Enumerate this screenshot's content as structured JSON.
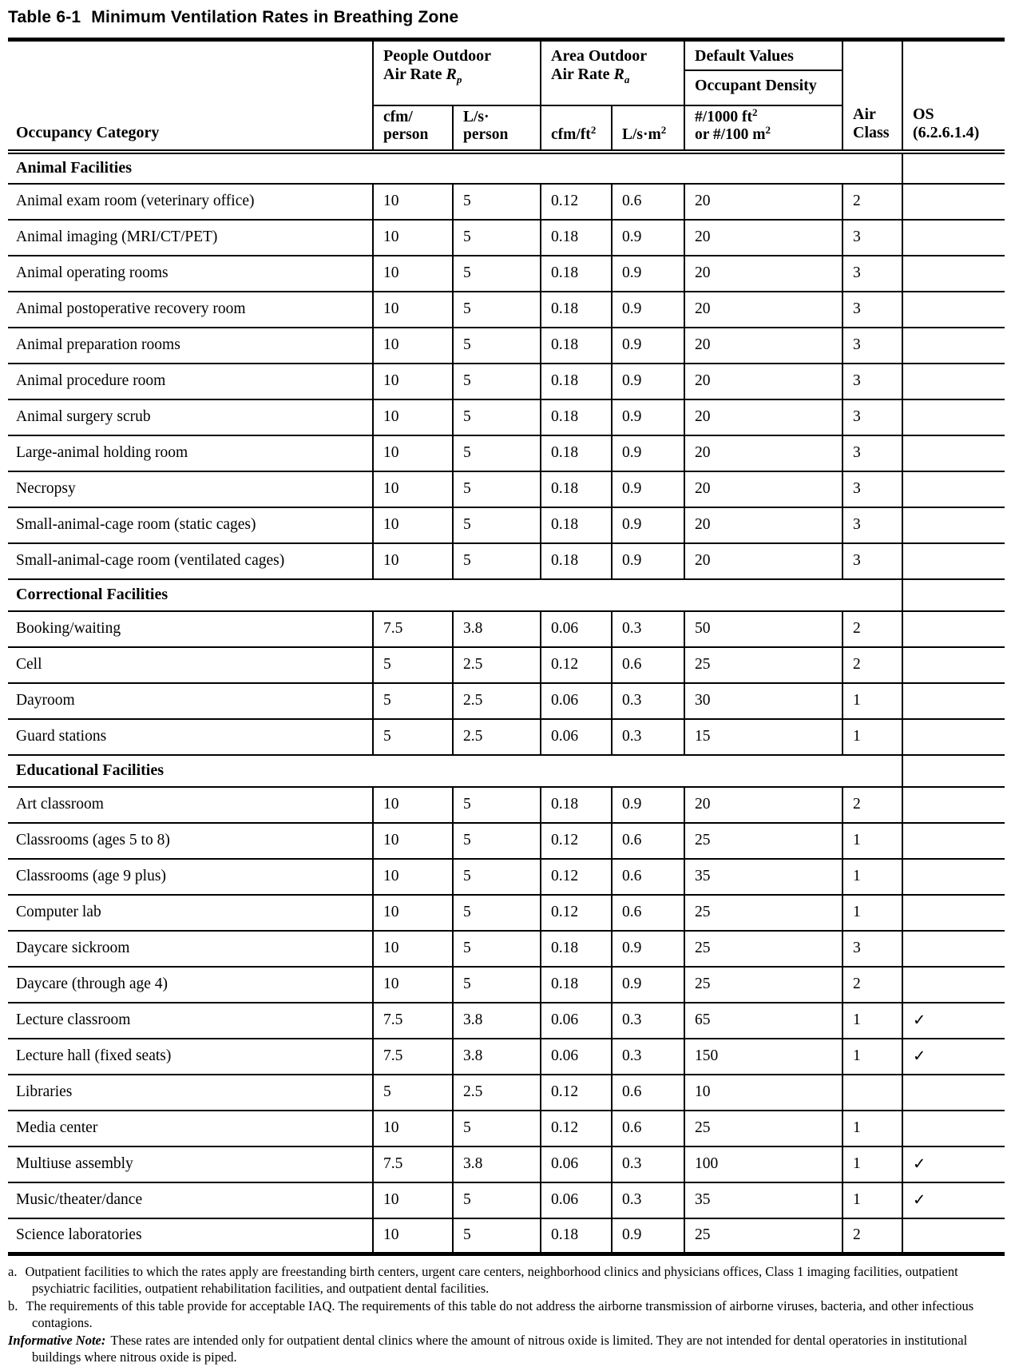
{
  "title": {
    "prefix": "Table 6-1",
    "text": "Minimum Ventilation Rates in Breathing Zone"
  },
  "header": {
    "occupancy_category": "Occupancy Category",
    "people_group": {
      "line1": "People Outdoor",
      "line2": "Air Rate ",
      "symbol": "R",
      "subscript": "p"
    },
    "area_group": {
      "line1": "Area Outdoor",
      "line2": "Air Rate ",
      "symbol": "R",
      "subscript": "a"
    },
    "default_values": "Default Values",
    "occupant_density": "Occupant Density",
    "air_class": {
      "line1": "Air",
      "line2": "Class"
    },
    "os": {
      "line1": "OS",
      "line2": "(6.2.6.1.4)"
    },
    "units": {
      "cfm_person": {
        "line1": "cfm/",
        "line2": "person"
      },
      "ls_person": {
        "line1": "L/s·",
        "line2": "person"
      },
      "cfm_ft2": {
        "base": "cfm/ft",
        "sup": "2"
      },
      "ls_m2": {
        "base": "L/s·m",
        "sup": "2"
      },
      "density": {
        "line1": "#/1000 ft",
        "sup1": "2",
        "line2": "or #/100 m",
        "sup2": "2"
      }
    }
  },
  "checkmark_glyph": "✓",
  "sections": [
    {
      "label": "Animal Facilities",
      "rows": [
        {
          "category": "Animal exam room (veterinary office)",
          "cfm_person": "10",
          "ls_person": "5",
          "cfm_ft2": "0.12",
          "ls_m2": "0.6",
          "density": "20",
          "air_class": "2",
          "os": ""
        },
        {
          "category": "Animal imaging (MRI/CT/PET)",
          "cfm_person": "10",
          "ls_person": "5",
          "cfm_ft2": "0.18",
          "ls_m2": "0.9",
          "density": "20",
          "air_class": "3",
          "os": ""
        },
        {
          "category": "Animal operating rooms",
          "cfm_person": "10",
          "ls_person": "5",
          "cfm_ft2": "0.18",
          "ls_m2": "0.9",
          "density": "20",
          "air_class": "3",
          "os": ""
        },
        {
          "category": "Animal postoperative recovery room",
          "cfm_person": "10",
          "ls_person": "5",
          "cfm_ft2": "0.18",
          "ls_m2": "0.9",
          "density": "20",
          "air_class": "3",
          "os": ""
        },
        {
          "category": "Animal preparation rooms",
          "cfm_person": "10",
          "ls_person": "5",
          "cfm_ft2": "0.18",
          "ls_m2": "0.9",
          "density": "20",
          "air_class": "3",
          "os": ""
        },
        {
          "category": "Animal procedure room",
          "cfm_person": "10",
          "ls_person": "5",
          "cfm_ft2": "0.18",
          "ls_m2": "0.9",
          "density": "20",
          "air_class": "3",
          "os": ""
        },
        {
          "category": "Animal surgery scrub",
          "cfm_person": "10",
          "ls_person": "5",
          "cfm_ft2": "0.18",
          "ls_m2": "0.9",
          "density": "20",
          "air_class": "3",
          "os": ""
        },
        {
          "category": "Large-animal holding room",
          "cfm_person": "10",
          "ls_person": "5",
          "cfm_ft2": "0.18",
          "ls_m2": "0.9",
          "density": "20",
          "air_class": "3",
          "os": ""
        },
        {
          "category": "Necropsy",
          "cfm_person": "10",
          "ls_person": "5",
          "cfm_ft2": "0.18",
          "ls_m2": "0.9",
          "density": "20",
          "air_class": "3",
          "os": ""
        },
        {
          "category": "Small-animal-cage room (static cages)",
          "cfm_person": "10",
          "ls_person": "5",
          "cfm_ft2": "0.18",
          "ls_m2": "0.9",
          "density": "20",
          "air_class": "3",
          "os": ""
        },
        {
          "category": "Small-animal-cage room (ventilated cages)",
          "cfm_person": "10",
          "ls_person": "5",
          "cfm_ft2": "0.18",
          "ls_m2": "0.9",
          "density": "20",
          "air_class": "3",
          "os": ""
        }
      ]
    },
    {
      "label": "Correctional Facilities",
      "rows": [
        {
          "category": "Booking/waiting",
          "cfm_person": "7.5",
          "ls_person": "3.8",
          "cfm_ft2": "0.06",
          "ls_m2": "0.3",
          "density": "50",
          "air_class": "2",
          "os": ""
        },
        {
          "category": "Cell",
          "cfm_person": "5",
          "ls_person": "2.5",
          "cfm_ft2": "0.12",
          "ls_m2": "0.6",
          "density": "25",
          "air_class": "2",
          "os": ""
        },
        {
          "category": "Dayroom",
          "cfm_person": "5",
          "ls_person": "2.5",
          "cfm_ft2": "0.06",
          "ls_m2": "0.3",
          "density": "30",
          "air_class": "1",
          "os": ""
        },
        {
          "category": "Guard stations",
          "cfm_person": "5",
          "ls_person": "2.5",
          "cfm_ft2": "0.06",
          "ls_m2": "0.3",
          "density": "15",
          "air_class": "1",
          "os": ""
        }
      ]
    },
    {
      "label": "Educational Facilities",
      "rows": [
        {
          "category": "Art classroom",
          "cfm_person": "10",
          "ls_person": "5",
          "cfm_ft2": "0.18",
          "ls_m2": "0.9",
          "density": "20",
          "air_class": "2",
          "os": ""
        },
        {
          "category": "Classrooms (ages 5 to 8)",
          "cfm_person": "10",
          "ls_person": "5",
          "cfm_ft2": "0.12",
          "ls_m2": "0.6",
          "density": "25",
          "air_class": "1",
          "os": ""
        },
        {
          "category": "Classrooms (age 9 plus)",
          "cfm_person": "10",
          "ls_person": "5",
          "cfm_ft2": "0.12",
          "ls_m2": "0.6",
          "density": "35",
          "air_class": "1",
          "os": ""
        },
        {
          "category": "Computer lab",
          "cfm_person": "10",
          "ls_person": "5",
          "cfm_ft2": "0.12",
          "ls_m2": "0.6",
          "density": "25",
          "air_class": "1",
          "os": ""
        },
        {
          "category": "Daycare sickroom",
          "cfm_person": "10",
          "ls_person": "5",
          "cfm_ft2": "0.18",
          "ls_m2": "0.9",
          "density": "25",
          "air_class": "3",
          "os": ""
        },
        {
          "category": "Daycare (through age 4)",
          "cfm_person": "10",
          "ls_person": "5",
          "cfm_ft2": "0.18",
          "ls_m2": "0.9",
          "density": "25",
          "air_class": "2",
          "os": ""
        },
        {
          "category": "Lecture classroom",
          "cfm_person": "7.5",
          "ls_person": "3.8",
          "cfm_ft2": "0.06",
          "ls_m2": "0.3",
          "density": "65",
          "air_class": "1",
          "os": "✓"
        },
        {
          "category": "Lecture hall (fixed seats)",
          "cfm_person": "7.5",
          "ls_person": "3.8",
          "cfm_ft2": "0.06",
          "ls_m2": "0.3",
          "density": "150",
          "air_class": "1",
          "os": "✓"
        },
        {
          "category": "Libraries",
          "cfm_person": "5",
          "ls_person": "2.5",
          "cfm_ft2": "0.12",
          "ls_m2": "0.6",
          "density": "10",
          "air_class": "",
          "os": ""
        },
        {
          "category": "Media center",
          "cfm_person": "10",
          "ls_person": "5",
          "cfm_ft2": "0.12",
          "ls_m2": "0.6",
          "density": "25",
          "air_class": "1",
          "os": ""
        },
        {
          "category": "Multiuse assembly",
          "cfm_person": "7.5",
          "ls_person": "3.8",
          "cfm_ft2": "0.06",
          "ls_m2": "0.3",
          "density": "100",
          "air_class": "1",
          "os": "✓"
        },
        {
          "category": "Music/theater/dance",
          "cfm_person": "10",
          "ls_person": "5",
          "cfm_ft2": "0.06",
          "ls_m2": "0.3",
          "density": "35",
          "air_class": "1",
          "os": "✓"
        },
        {
          "category": "Science laboratories",
          "cfm_person": "10",
          "ls_person": "5",
          "cfm_ft2": "0.18",
          "ls_m2": "0.9",
          "density": "25",
          "air_class": "2",
          "os": ""
        }
      ]
    }
  ],
  "footnotes": [
    {
      "marker": "a.",
      "text": "Outpatient facilities to which the rates apply are freestanding birth centers, urgent care centers, neighborhood clinics and physicians offices, Class 1 imaging facilities, outpatient psychiatric facilities, outpatient rehabilitation facilities, and outpatient dental facilities."
    },
    {
      "marker": "b.",
      "text": "The requirements of this table provide for acceptable IAQ. The requirements of this table do not address the airborne transmission of airborne viruses, bacteria, and other infectious contagions."
    },
    {
      "marker": "Informative Note:",
      "text": "These rates are intended only for outpatient dental clinics where the amount of nitrous oxide is limited. They are not intended for dental operatories in institutional buildings where nitrous oxide is piped."
    }
  ]
}
